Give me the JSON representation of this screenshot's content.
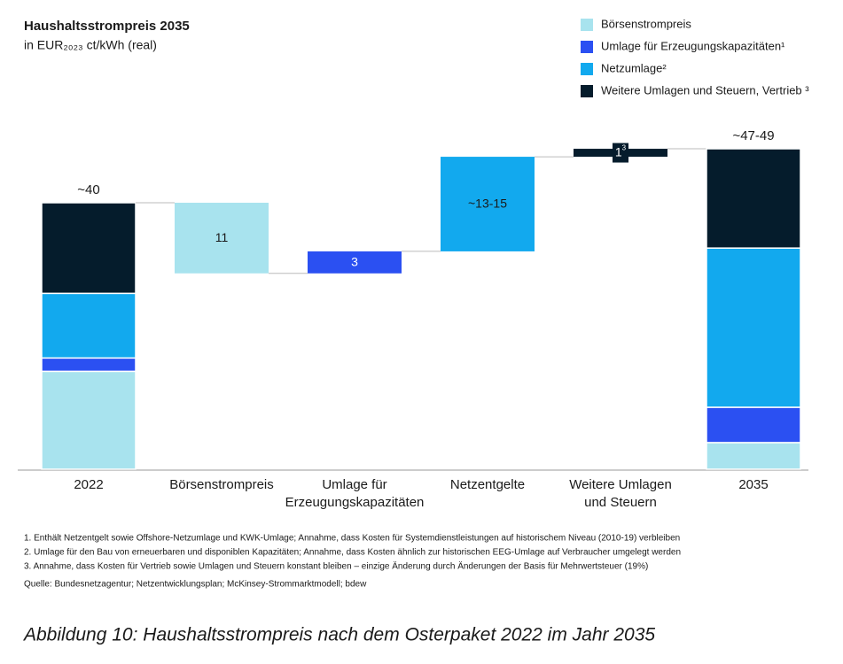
{
  "chart_data": {
    "type": "waterfall",
    "title": "Haushaltsstrompreis 2035",
    "subtitle": "in EUR₂₀₂₃ ct/kWh (real)",
    "categories": [
      "2022",
      "Börsenstrompreis",
      "Umlage für\nErzeugungskapazitäten",
      "Netzentgelte",
      "Weitere Umlagen\nund Steuern",
      "2035"
    ],
    "series": [
      {
        "name": "Börsenstrompreis",
        "color": "#a8e3ee",
        "text_color": "#1a1a1a",
        "values": [
          14.7,
          -10.6,
          null,
          null,
          null,
          4
        ],
        "value_labels": [
          null,
          "11",
          null,
          null,
          null,
          null
        ]
      },
      {
        "name": "Umlage für Erzeugungskapazitäten¹",
        "color": "#2b50f2",
        "text_color": "#ffffff",
        "values": [
          2,
          null,
          3.3,
          null,
          null,
          5.3
        ],
        "value_labels": [
          null,
          null,
          "3",
          null,
          null,
          null
        ]
      },
      {
        "name": "Netzumlage²",
        "color": "#12a9ee",
        "text_color": "#1a1a1a",
        "values": [
          9.7,
          null,
          null,
          14.2,
          null,
          23.9
        ],
        "value_labels": [
          null,
          null,
          null,
          "~13-15",
          null,
          null
        ]
      },
      {
        "name": "Weitere Umlagen und Steuern, Vertrieb ³",
        "color": "#051c2c",
        "text_color": "#ffffff",
        "values": [
          13.6,
          null,
          null,
          null,
          1.2,
          14.9
        ],
        "value_labels": [
          null,
          null,
          null,
          null,
          "1",
          null
        ],
        "value_label_refs": [
          null,
          null,
          null,
          null,
          "3",
          null
        ]
      }
    ],
    "total_labels": [
      "~40",
      null,
      null,
      null,
      null,
      "~47-49"
    ],
    "footnotes": [
      "1.  Enthält Netzentgelt sowie Offshore-Netzumlage und KWK-Umlage; Annahme, dass Kosten für Systemdienstleistungen auf historischem Niveau (2010-19) verbleiben",
      "2.  Umlage für den Bau von erneuerbaren und disponiblen Kapazitäten; Annahme, dass Kosten ähnlich zur historischen EEG-Umlage auf Verbraucher umgelegt werden",
      "3.  Annahme, dass Kosten für Vertrieb sowie Umlagen und Steuern konstant bleiben – einzige Änderung durch Änderungen der Basis für Mehrwertsteuer (19%)"
    ],
    "source": "Quelle:  Bundesnetzagentur; Netzentwicklungsplan; McKinsey-Strommarktmodell; bdew"
  },
  "caption": "Abbildung 10: Haushaltsstrompreis nach dem Osterpaket 2022 im Jahr 2035"
}
